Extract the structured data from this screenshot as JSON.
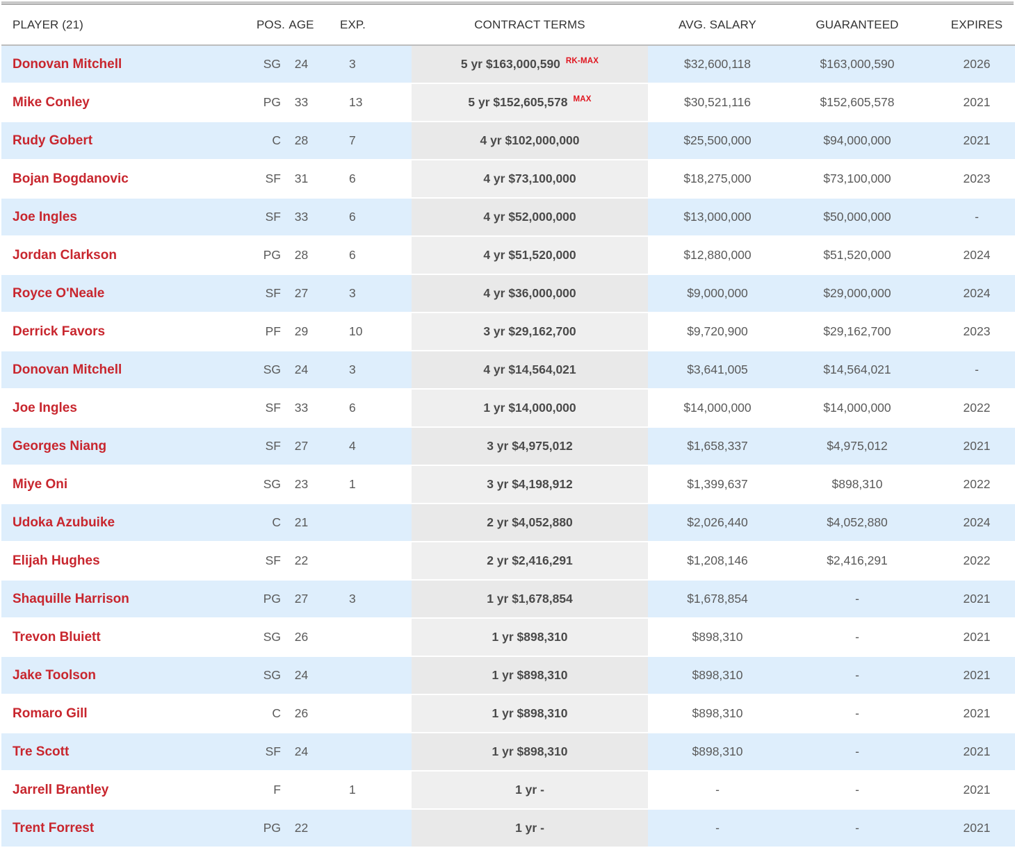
{
  "table": {
    "headers": {
      "player": "PLAYER (21)",
      "pos": "POS.",
      "age": "AGE",
      "exp": "EXP.",
      "contract": "CONTRACT TERMS",
      "avg": "AVG. SALARY",
      "guaranteed": "GUARANTEED",
      "expires": "EXPIRES"
    },
    "rows": [
      {
        "name": "Donovan Mitchell",
        "pos": "SG",
        "age": "24",
        "exp": "3",
        "contract": "5 yr $163,000,590",
        "tag": "RK-MAX",
        "avg": "$32,600,118",
        "guaranteed": "$163,000,590",
        "expires": "2026"
      },
      {
        "name": "Mike Conley",
        "pos": "PG",
        "age": "33",
        "exp": "13",
        "contract": "5 yr $152,605,578",
        "tag": "MAX",
        "avg": "$30,521,116",
        "guaranteed": "$152,605,578",
        "expires": "2021"
      },
      {
        "name": "Rudy Gobert",
        "pos": "C",
        "age": "28",
        "exp": "7",
        "contract": "4 yr $102,000,000",
        "tag": "",
        "avg": "$25,500,000",
        "guaranteed": "$94,000,000",
        "expires": "2021"
      },
      {
        "name": "Bojan Bogdanovic",
        "pos": "SF",
        "age": "31",
        "exp": "6",
        "contract": "4 yr $73,100,000",
        "tag": "",
        "avg": "$18,275,000",
        "guaranteed": "$73,100,000",
        "expires": "2023"
      },
      {
        "name": "Joe Ingles",
        "pos": "SF",
        "age": "33",
        "exp": "6",
        "contract": "4 yr $52,000,000",
        "tag": "",
        "avg": "$13,000,000",
        "guaranteed": "$50,000,000",
        "expires": "-"
      },
      {
        "name": "Jordan Clarkson",
        "pos": "PG",
        "age": "28",
        "exp": "6",
        "contract": "4 yr $51,520,000",
        "tag": "",
        "avg": "$12,880,000",
        "guaranteed": "$51,520,000",
        "expires": "2024"
      },
      {
        "name": "Royce O'Neale",
        "pos": "SF",
        "age": "27",
        "exp": "3",
        "contract": "4 yr $36,000,000",
        "tag": "",
        "avg": "$9,000,000",
        "guaranteed": "$29,000,000",
        "expires": "2024"
      },
      {
        "name": "Derrick Favors",
        "pos": "PF",
        "age": "29",
        "exp": "10",
        "contract": "3 yr $29,162,700",
        "tag": "",
        "avg": "$9,720,900",
        "guaranteed": "$29,162,700",
        "expires": "2023"
      },
      {
        "name": "Donovan Mitchell",
        "pos": "SG",
        "age": "24",
        "exp": "3",
        "contract": "4 yr $14,564,021",
        "tag": "",
        "avg": "$3,641,005",
        "guaranteed": "$14,564,021",
        "expires": "-"
      },
      {
        "name": "Joe Ingles",
        "pos": "SF",
        "age": "33",
        "exp": "6",
        "contract": "1 yr $14,000,000",
        "tag": "",
        "avg": "$14,000,000",
        "guaranteed": "$14,000,000",
        "expires": "2022"
      },
      {
        "name": "Georges Niang",
        "pos": "SF",
        "age": "27",
        "exp": "4",
        "contract": "3 yr $4,975,012",
        "tag": "",
        "avg": "$1,658,337",
        "guaranteed": "$4,975,012",
        "expires": "2021"
      },
      {
        "name": "Miye Oni",
        "pos": "SG",
        "age": "23",
        "exp": "1",
        "contract": "3 yr $4,198,912",
        "tag": "",
        "avg": "$1,399,637",
        "guaranteed": "$898,310",
        "expires": "2022"
      },
      {
        "name": "Udoka Azubuike",
        "pos": "C",
        "age": "21",
        "exp": "",
        "contract": "2 yr $4,052,880",
        "tag": "",
        "avg": "$2,026,440",
        "guaranteed": "$4,052,880",
        "expires": "2024"
      },
      {
        "name": "Elijah Hughes",
        "pos": "SF",
        "age": "22",
        "exp": "",
        "contract": "2 yr $2,416,291",
        "tag": "",
        "avg": "$1,208,146",
        "guaranteed": "$2,416,291",
        "expires": "2022"
      },
      {
        "name": "Shaquille Harrison",
        "pos": "PG",
        "age": "27",
        "exp": "3",
        "contract": "1 yr $1,678,854",
        "tag": "",
        "avg": "$1,678,854",
        "guaranteed": "-",
        "expires": "2021"
      },
      {
        "name": "Trevon Bluiett",
        "pos": "SG",
        "age": "26",
        "exp": "",
        "contract": "1 yr $898,310",
        "tag": "",
        "avg": "$898,310",
        "guaranteed": "-",
        "expires": "2021"
      },
      {
        "name": "Jake Toolson",
        "pos": "SG",
        "age": "24",
        "exp": "",
        "contract": "1 yr $898,310",
        "tag": "",
        "avg": "$898,310",
        "guaranteed": "-",
        "expires": "2021"
      },
      {
        "name": "Romaro Gill",
        "pos": "C",
        "age": "26",
        "exp": "",
        "contract": "1 yr $898,310",
        "tag": "",
        "avg": "$898,310",
        "guaranteed": "-",
        "expires": "2021"
      },
      {
        "name": "Tre Scott",
        "pos": "SF",
        "age": "24",
        "exp": "",
        "contract": "1 yr $898,310",
        "tag": "",
        "avg": "$898,310",
        "guaranteed": "-",
        "expires": "2021"
      },
      {
        "name": "Jarrell Brantley",
        "pos": "F",
        "age": "",
        "exp": "1",
        "contract": "1 yr -",
        "tag": "",
        "avg": "-",
        "guaranteed": "-",
        "expires": "2021"
      },
      {
        "name": "Trent Forrest",
        "pos": "PG",
        "age": "22",
        "exp": "",
        "contract": "1 yr -",
        "tag": "",
        "avg": "-",
        "guaranteed": "-",
        "expires": "2021"
      }
    ]
  },
  "colors": {
    "player_link": "#c8262e",
    "tag": "#e0141e",
    "row_stripe": "#deeefc",
    "contract_column": "#efefef"
  }
}
